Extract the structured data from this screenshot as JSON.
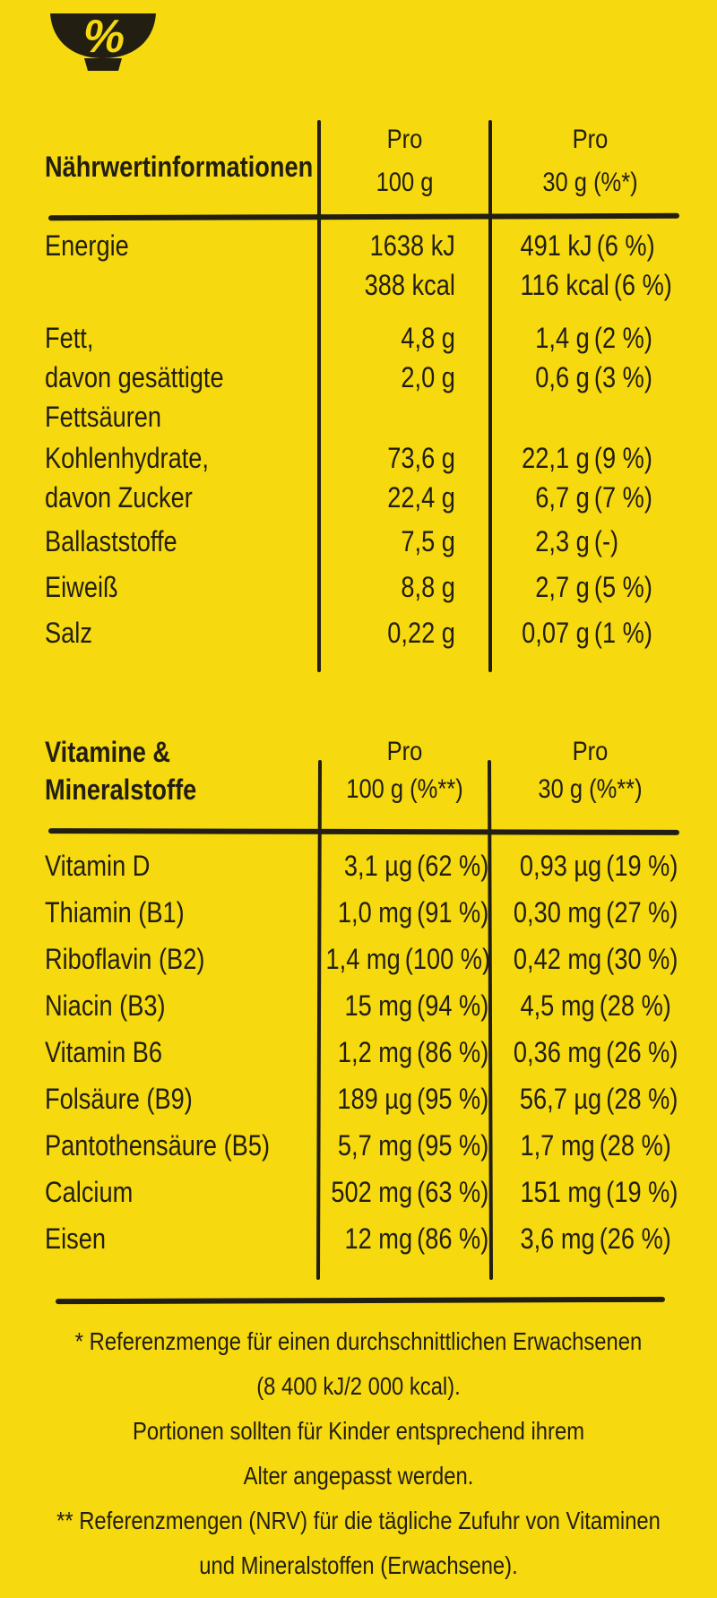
{
  "colors": {
    "background": "#F6D90E",
    "ink": "#221E11"
  },
  "logo": {
    "percent_symbol": "%"
  },
  "nutrition_table": {
    "title": "Nährwertinformationen",
    "col_headers": {
      "per100": [
        "Pro",
        "100 g"
      ],
      "per30": [
        "Pro",
        "30 g (%*)"
      ]
    },
    "rows": [
      {
        "labels": [
          "Energie"
        ],
        "per100": [
          {
            "num": "1638 kJ",
            "pct": ""
          },
          {
            "num": "388 kcal",
            "pct": ""
          }
        ],
        "per30": [
          {
            "num": "491 kJ",
            "pct": "(6 %)"
          },
          {
            "num": "116 kcal",
            "pct": "(6 %)"
          }
        ]
      },
      {
        "labels": [
          "Fett,",
          "davon gesättigte",
          "Fettsäuren"
        ],
        "per100": [
          {
            "num": "4,8 g",
            "pct": ""
          },
          {
            "num": "2,0 g",
            "pct": ""
          }
        ],
        "per30": [
          {
            "num": "1,4 g",
            "pct": "(2 %)"
          },
          {
            "num": "0,6 g",
            "pct": "(3 %)"
          }
        ]
      },
      {
        "labels": [
          "Kohlenhydrate,",
          "davon Zucker"
        ],
        "per100": [
          {
            "num": "73,6 g",
            "pct": ""
          },
          {
            "num": "22,4 g",
            "pct": ""
          }
        ],
        "per30": [
          {
            "num": "22,1 g",
            "pct": "(9 %)"
          },
          {
            "num": "6,7 g",
            "pct": "(7 %)"
          }
        ]
      },
      {
        "labels": [
          "Ballaststoffe"
        ],
        "per100": [
          {
            "num": "7,5 g",
            "pct": ""
          }
        ],
        "per30": [
          {
            "num": "2,3 g",
            "pct": "(-)"
          }
        ]
      },
      {
        "labels": [
          "Eiweiß"
        ],
        "per100": [
          {
            "num": "8,8 g",
            "pct": ""
          }
        ],
        "per30": [
          {
            "num": "2,7 g",
            "pct": "(5 %)"
          }
        ]
      },
      {
        "labels": [
          "Salz"
        ],
        "per100": [
          {
            "num": "0,22 g",
            "pct": ""
          }
        ],
        "per30": [
          {
            "num": "0,07 g",
            "pct": "(1 %)"
          }
        ]
      }
    ]
  },
  "vitamins_table": {
    "title": [
      "Vitamine &",
      "Mineralstoffe"
    ],
    "col_headers": {
      "per100": [
        "Pro",
        "100 g (%**)"
      ],
      "per30": [
        "Pro",
        "30 g (%**)"
      ]
    },
    "rows": [
      {
        "label": "Vitamin D",
        "per100": {
          "num": "3,1 µg",
          "pct": "(62 %)"
        },
        "per30": {
          "num": "0,93 µg",
          "pct": "(19 %)"
        }
      },
      {
        "label": "Thiamin (B1)",
        "per100": {
          "num": "1,0 mg",
          "pct": "(91 %)"
        },
        "per30": {
          "num": "0,30 mg",
          "pct": "(27 %)"
        }
      },
      {
        "label": "Riboflavin (B2)",
        "per100": {
          "num": "1,4 mg",
          "pct": "(100 %)"
        },
        "per30": {
          "num": "0,42 mg",
          "pct": "(30 %)"
        }
      },
      {
        "label": "Niacin (B3)",
        "per100": {
          "num": "15 mg",
          "pct": "(94 %)"
        },
        "per30": {
          "num": "4,5 mg",
          "pct": "(28 %)"
        }
      },
      {
        "label": "Vitamin B6",
        "per100": {
          "num": "1,2 mg",
          "pct": "(86 %)"
        },
        "per30": {
          "num": "0,36 mg",
          "pct": "(26 %)"
        }
      },
      {
        "label": "Folsäure (B9)",
        "per100": {
          "num": "189 µg",
          "pct": "(95 %)"
        },
        "per30": {
          "num": "56,7 µg",
          "pct": "(28 %)"
        }
      },
      {
        "label": "Pantothensäure (B5)",
        "per100": {
          "num": "5,7 mg",
          "pct": "(95 %)"
        },
        "per30": {
          "num": "1,7 mg",
          "pct": "(28 %)"
        }
      },
      {
        "label": "Calcium",
        "per100": {
          "num": "502 mg",
          "pct": "(63 %)"
        },
        "per30": {
          "num": "151 mg",
          "pct": "(19 %)"
        }
      },
      {
        "label": "Eisen",
        "per100": {
          "num": "12 mg",
          "pct": "(86 %)"
        },
        "per30": {
          "num": "3,6 mg",
          "pct": "(26 %)"
        }
      }
    ]
  },
  "footnotes": [
    "* Referenzmenge für einen durchschnittlichen Erwachsenen",
    "(8 400 kJ/2 000 kcal).",
    "Portionen sollten für Kinder entsprechend ihrem",
    "Alter angepasst werden.",
    "** Referenzmengen (NRV) für die tägliche Zufuhr von Vitaminen",
    "und Mineralstoffen (Erwachsene)."
  ]
}
